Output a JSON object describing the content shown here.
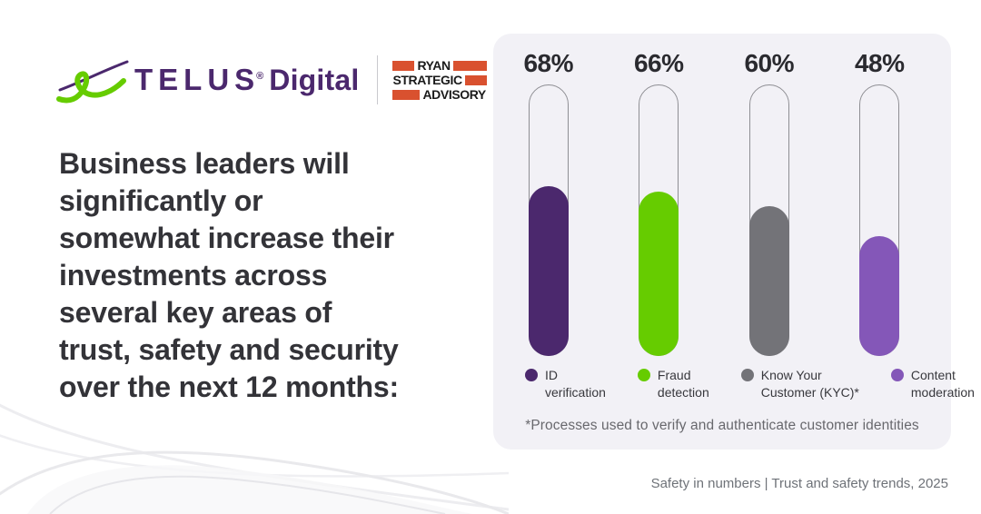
{
  "logo": {
    "telus_wordmark": "TELUS",
    "telus_reg": "®",
    "telus_suffix": "Digital",
    "telus_purple": "#4B286D",
    "telus_green": "#66CC00",
    "partner_lines": [
      "RYAN",
      "STRATEGIC",
      "ADVISORY"
    ],
    "partner_accent": "#D9512F"
  },
  "headline": "Business leaders will significantly or somewhat increase their investments across several key areas of trust, safety and security over the next 12 months:",
  "headline_lines": [
    "Business leaders will",
    "significantly or",
    "somewhat increase their",
    "investments across",
    "several key areas of",
    "trust, safety and security",
    "over the next 12 months:"
  ],
  "panel": {
    "background": "#F2F1F6"
  },
  "chart_data": {
    "type": "bar",
    "title": "",
    "categories": [
      "ID verification",
      "Fraud detection",
      "Know Your Customer (KYC)*",
      "Content moderation"
    ],
    "values": [
      68,
      66,
      60,
      48
    ],
    "value_labels": [
      "68%",
      "66%",
      "60%",
      "48%"
    ],
    "bar_colors": [
      "#4B286D",
      "#66CC00",
      "#737378",
      "#8457B8"
    ],
    "legend_lines": [
      [
        "ID",
        "verification"
      ],
      [
        "Fraud",
        "detection"
      ],
      [
        "Know Your",
        "Customer (KYC)*"
      ],
      [
        "Content",
        "moderation"
      ]
    ],
    "footnote": "*Processes used to verify and authenticate customer identities",
    "ylim": [
      0,
      100
    ],
    "grid": false,
    "legend_position": "bottom",
    "tube_border_color": "#8E8E93"
  },
  "footer": "Safety in numbers | Trust and safety trends, 2025"
}
